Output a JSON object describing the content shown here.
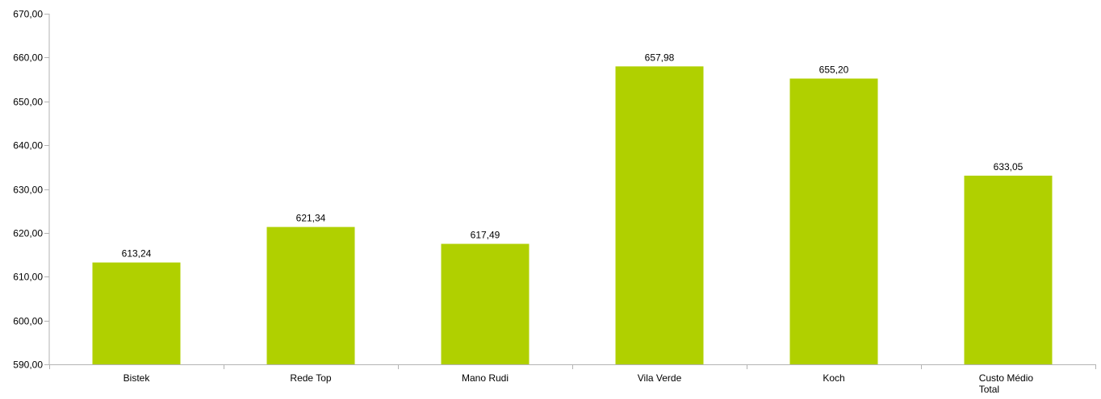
{
  "chart_data": {
    "type": "bar",
    "categories": [
      "Bistek",
      "Rede Top",
      "Mano Rudi",
      "Vila Verde",
      "Koch",
      "Custo Médio Total"
    ],
    "values": [
      613.24,
      621.34,
      617.49,
      657.98,
      655.2,
      633.05
    ],
    "value_labels": [
      "613,24",
      "621,34",
      "617,49",
      "657,98",
      "655,20",
      "633,05"
    ],
    "y_tick_values": [
      590,
      600,
      610,
      620,
      630,
      640,
      650,
      660,
      670
    ],
    "y_tick_labels": [
      "590,00",
      "600,00",
      "610,00",
      "620,00",
      "630,00",
      "640,00",
      "650,00",
      "660,00",
      "670,00"
    ],
    "ylim": [
      590,
      670
    ],
    "title": "",
    "xlabel": "",
    "ylabel": "",
    "grid": false,
    "legend": "none",
    "bar_color": "#b0d000",
    "axis_color": "#b3b3b3"
  }
}
